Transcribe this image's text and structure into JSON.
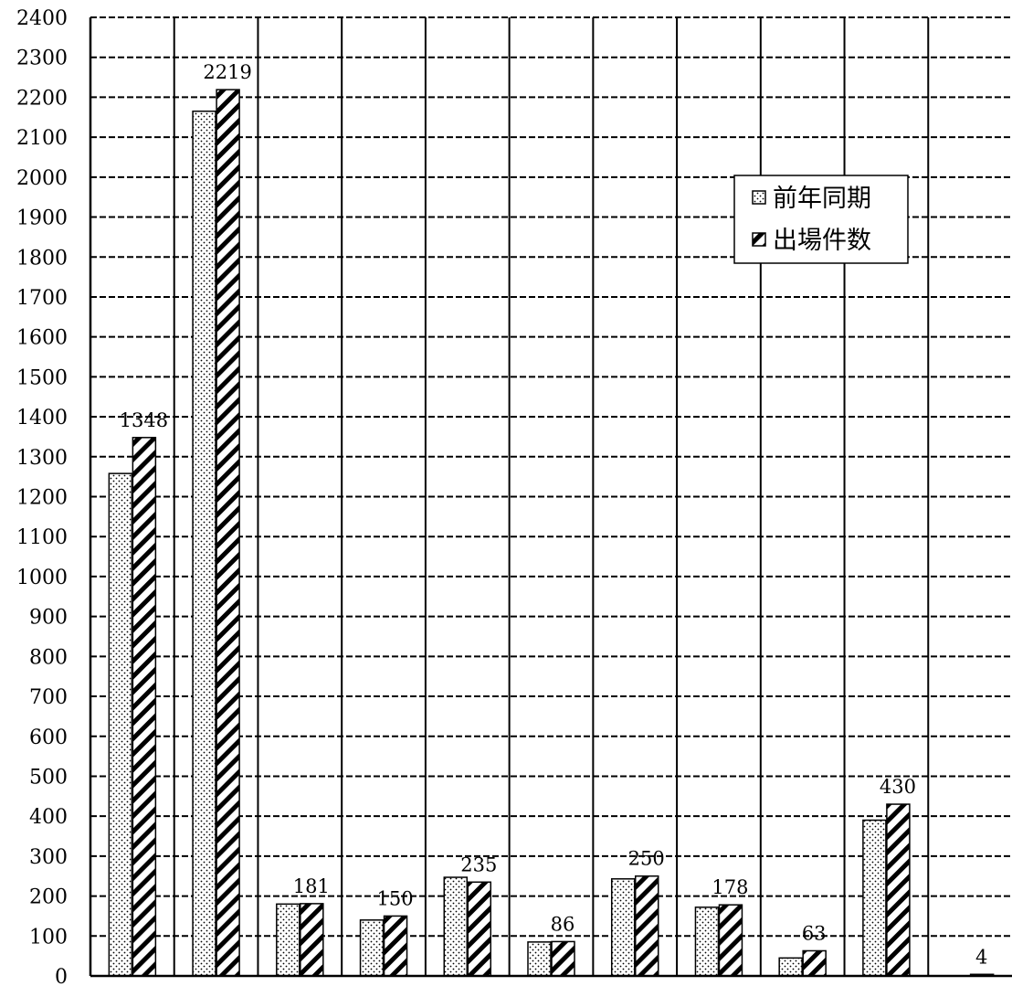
{
  "chart_data": {
    "type": "bar",
    "ylim": [
      0,
      2400
    ],
    "ystep": 100,
    "grid": true,
    "legend_position": "top-right",
    "categories": [
      "",
      "",
      "",
      "",
      "",
      "",
      "",
      "",
      "",
      "",
      ""
    ],
    "series": [
      {
        "name": "前年同期",
        "pattern": "dots",
        "values": [
          1258,
          2165,
          180,
          140,
          247,
          85,
          243,
          172,
          45,
          390,
          0
        ]
      },
      {
        "name": "出場件数",
        "pattern": "diagonal",
        "values": [
          1348,
          2219,
          181,
          150,
          235,
          86,
          250,
          178,
          63,
          430,
          4
        ]
      }
    ],
    "data_labels": [
      "1348",
      "2219",
      "181",
      "150",
      "235",
      "86",
      "250",
      "178",
      "63",
      "430",
      "4"
    ]
  }
}
